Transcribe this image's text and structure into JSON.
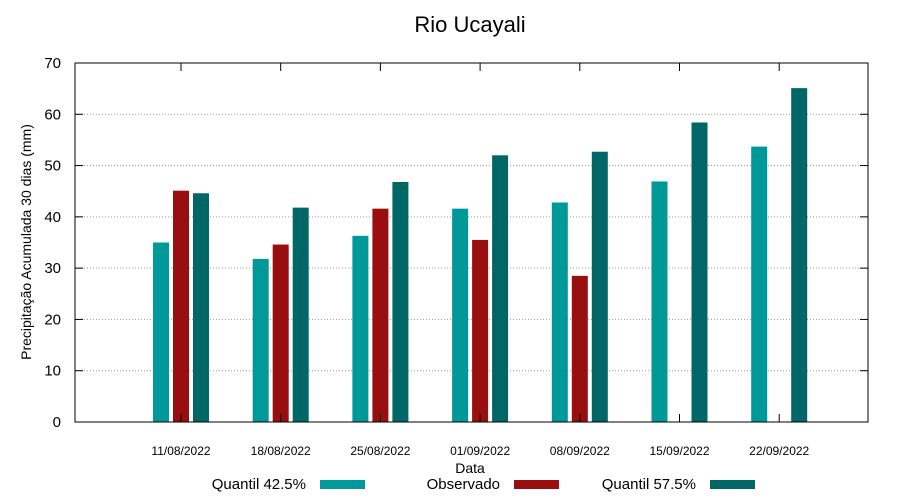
{
  "chart_data": {
    "type": "bar",
    "title": "Rio Ucayali",
    "xlabel": "Data",
    "ylabel": "Precipitação Acumulada 30 dias (mm)",
    "ylim": [
      0,
      70
    ],
    "yticks": [
      0,
      10,
      20,
      30,
      40,
      50,
      60,
      70
    ],
    "grid": true,
    "legend_position": "bottom",
    "categories": [
      "11/08/2022",
      "18/08/2022",
      "25/08/2022",
      "01/09/2022",
      "08/09/2022",
      "15/09/2022",
      "22/09/2022"
    ],
    "series": [
      {
        "name": "Quantil 42.5%",
        "color": "#009999",
        "values": [
          35.0,
          31.8,
          36.3,
          41.6,
          42.8,
          46.9,
          53.7
        ]
      },
      {
        "name": "Observado",
        "color": "#990f0f",
        "values": [
          45.1,
          34.6,
          41.6,
          35.5,
          28.5,
          null,
          null
        ]
      },
      {
        "name": "Quantil 57.5%",
        "color": "#006666",
        "values": [
          44.6,
          41.8,
          46.8,
          52.0,
          52.7,
          58.4,
          65.1
        ]
      }
    ]
  }
}
